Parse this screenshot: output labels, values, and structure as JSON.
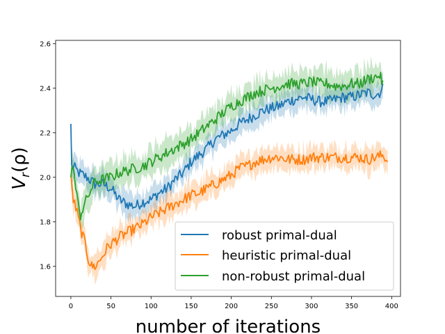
{
  "chart_data": {
    "type": "line",
    "title": "",
    "xlabel": "number of iterations",
    "ylabel_main": "V",
    "ylabel_sub": "r",
    "ylabel_arg": "(ρ)",
    "xlim": [
      -19,
      411
    ],
    "ylim": [
      1.465,
      2.615
    ],
    "xticks": [
      0,
      50,
      100,
      150,
      200,
      250,
      300,
      350,
      400
    ],
    "yticks": [
      1.6,
      1.8,
      2.0,
      2.2,
      2.4,
      2.6
    ],
    "ytick_labels": [
      "1.6",
      "1.8",
      "2.0",
      "2.2",
      "2.4",
      "2.6"
    ],
    "grid": false,
    "legend_position": "bottom-right",
    "series": [
      {
        "name": "robust primal-dual",
        "color": "#1f77b4",
        "points": [
          [
            0,
            2.24
          ],
          [
            1,
            2.05
          ],
          [
            5,
            2.04
          ],
          [
            10,
            2.02
          ],
          [
            20,
            2.0
          ],
          [
            30,
            1.97
          ],
          [
            40,
            1.97
          ],
          [
            50,
            1.95
          ],
          [
            60,
            1.9
          ],
          [
            70,
            1.88
          ],
          [
            80,
            1.87
          ],
          [
            90,
            1.89
          ],
          [
            100,
            1.9
          ],
          [
            110,
            1.93
          ],
          [
            120,
            1.95
          ],
          [
            130,
            1.99
          ],
          [
            140,
            2.02
          ],
          [
            150,
            2.07
          ],
          [
            160,
            2.1
          ],
          [
            170,
            2.13
          ],
          [
            180,
            2.17
          ],
          [
            190,
            2.19
          ],
          [
            200,
            2.21
          ],
          [
            210,
            2.24
          ],
          [
            220,
            2.26
          ],
          [
            230,
            2.28
          ],
          [
            240,
            2.3
          ],
          [
            250,
            2.31
          ],
          [
            260,
            2.32
          ],
          [
            270,
            2.34
          ],
          [
            280,
            2.35
          ],
          [
            290,
            2.36
          ],
          [
            300,
            2.35
          ],
          [
            310,
            2.34
          ],
          [
            320,
            2.34
          ],
          [
            330,
            2.35
          ],
          [
            340,
            2.36
          ],
          [
            350,
            2.36
          ],
          [
            360,
            2.37
          ],
          [
            370,
            2.38
          ],
          [
            380,
            2.37
          ],
          [
            385,
            2.38
          ],
          [
            389,
            2.4
          ]
        ],
        "band": 0.05
      },
      {
        "name": "heuristic primal-dual",
        "color": "#ff7f0e",
        "points": [
          [
            0,
            2.01
          ],
          [
            3,
            1.9
          ],
          [
            8,
            1.84
          ],
          [
            12,
            1.77
          ],
          [
            18,
            1.7
          ],
          [
            22,
            1.63
          ],
          [
            26,
            1.6
          ],
          [
            30,
            1.6
          ],
          [
            35,
            1.62
          ],
          [
            40,
            1.65
          ],
          [
            45,
            1.68
          ],
          [
            50,
            1.7
          ],
          [
            60,
            1.73
          ],
          [
            70,
            1.75
          ],
          [
            80,
            1.77
          ],
          [
            90,
            1.79
          ],
          [
            100,
            1.82
          ],
          [
            110,
            1.84
          ],
          [
            120,
            1.86
          ],
          [
            130,
            1.88
          ],
          [
            140,
            1.9
          ],
          [
            150,
            1.92
          ],
          [
            160,
            1.93
          ],
          [
            170,
            1.95
          ],
          [
            180,
            1.97
          ],
          [
            190,
            1.99
          ],
          [
            200,
            2.01
          ],
          [
            210,
            2.04
          ],
          [
            220,
            2.05
          ],
          [
            230,
            2.07
          ],
          [
            240,
            2.08
          ],
          [
            250,
            2.09
          ],
          [
            260,
            2.09
          ],
          [
            270,
            2.08
          ],
          [
            280,
            2.08
          ],
          [
            290,
            2.08
          ],
          [
            300,
            2.09
          ],
          [
            310,
            2.09
          ],
          [
            320,
            2.09
          ],
          [
            330,
            2.09
          ],
          [
            340,
            2.09
          ],
          [
            350,
            2.09
          ],
          [
            360,
            2.09
          ],
          [
            370,
            2.08
          ],
          [
            380,
            2.09
          ],
          [
            390,
            2.1
          ],
          [
            395,
            2.07
          ]
        ],
        "band": 0.05
      },
      {
        "name": "non-robust primal-dual",
        "color": "#2ca02c",
        "points": [
          [
            0,
            2.0
          ],
          [
            3,
            2.06
          ],
          [
            6,
            1.95
          ],
          [
            9,
            1.88
          ],
          [
            12,
            1.83
          ],
          [
            16,
            1.87
          ],
          [
            22,
            1.92
          ],
          [
            30,
            1.98
          ],
          [
            40,
            1.99
          ],
          [
            50,
            2.0
          ],
          [
            60,
            2.02
          ],
          [
            70,
            2.03
          ],
          [
            80,
            2.04
          ],
          [
            90,
            2.05
          ],
          [
            100,
            2.07
          ],
          [
            110,
            2.09
          ],
          [
            120,
            2.11
          ],
          [
            130,
            2.13
          ],
          [
            140,
            2.15
          ],
          [
            150,
            2.17
          ],
          [
            160,
            2.2
          ],
          [
            170,
            2.23
          ],
          [
            180,
            2.26
          ],
          [
            190,
            2.29
          ],
          [
            200,
            2.32
          ],
          [
            210,
            2.34
          ],
          [
            220,
            2.36
          ],
          [
            230,
            2.38
          ],
          [
            240,
            2.39
          ],
          [
            250,
            2.4
          ],
          [
            260,
            2.41
          ],
          [
            270,
            2.42
          ],
          [
            280,
            2.42
          ],
          [
            290,
            2.42
          ],
          [
            300,
            2.43
          ],
          [
            310,
            2.42
          ],
          [
            320,
            2.42
          ],
          [
            330,
            2.41
          ],
          [
            340,
            2.41
          ],
          [
            350,
            2.42
          ],
          [
            360,
            2.42
          ],
          [
            370,
            2.44
          ],
          [
            380,
            2.45
          ],
          [
            385,
            2.46
          ],
          [
            389,
            2.42
          ]
        ],
        "band": 0.06
      }
    ]
  }
}
